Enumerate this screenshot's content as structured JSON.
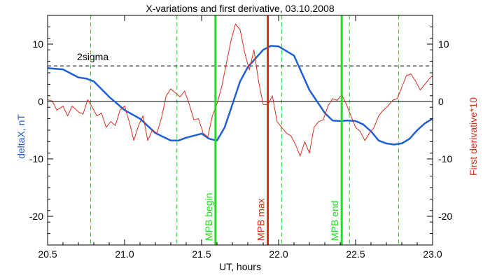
{
  "chart_data": {
    "type": "line",
    "title": "X-variations and first derivative, 03.10.2008",
    "xlabel": "UT, hours",
    "ylabel_left": "deltaX, nT",
    "ylabel_right": "First derivative*10",
    "xlim": [
      20.5,
      23.0
    ],
    "ylim": [
      -25,
      15
    ],
    "x_ticks": [
      20.5,
      21.0,
      21.5,
      22.0,
      22.5,
      23.0
    ],
    "x_tick_labels": [
      "20.5",
      "21.0",
      "21.5",
      "22.0",
      "22.5",
      "23.0"
    ],
    "y_ticks": [
      10,
      0,
      -10,
      -20
    ],
    "y_tick_labels": [
      "10",
      "0",
      "-10",
      "-20"
    ],
    "grid": false,
    "colors": {
      "deltaX": "#1f5fd6",
      "derivative": "#d62f1f",
      "green_marker": "#22dd22",
      "red_marker": "#dd2a10",
      "dashed_line": "#000000"
    },
    "series": [
      {
        "key": "deltaX",
        "axis": "left",
        "x": [
          20.5,
          20.6,
          20.7,
          20.75,
          20.8,
          20.9,
          21.0,
          21.1,
          21.2,
          21.3,
          21.35,
          21.4,
          21.5,
          21.55,
          21.6,
          21.65,
          21.7,
          21.75,
          21.8,
          21.85,
          21.9,
          21.95,
          22.0,
          22.1,
          22.2,
          22.3,
          22.35,
          22.4,
          22.45,
          22.5,
          22.55,
          22.6,
          22.65,
          22.7,
          22.75,
          22.8,
          22.85,
          22.9,
          22.95,
          23.0
        ],
        "y": [
          5.8,
          5.6,
          4.2,
          4.0,
          3.5,
          0.8,
          -1.5,
          -3.0,
          -5.5,
          -6.8,
          -6.8,
          -6.3,
          -5.6,
          -6.5,
          -6.8,
          -4.5,
          -0.5,
          3.5,
          6.0,
          7.5,
          9.0,
          9.7,
          9.6,
          8.0,
          2.0,
          -2.0,
          -3.3,
          -3.4,
          -3.3,
          -3.4,
          -4.0,
          -5.2,
          -6.8,
          -7.3,
          -7.5,
          -7.3,
          -6.5,
          -5.0,
          -3.8,
          -3.0
        ]
      },
      {
        "key": "derivative",
        "axis": "right",
        "x": [
          20.5,
          20.53,
          20.56,
          20.6,
          20.63,
          20.66,
          20.7,
          20.73,
          20.76,
          20.79,
          20.82,
          20.85,
          20.88,
          20.91,
          20.94,
          20.97,
          21.0,
          21.03,
          21.06,
          21.09,
          21.12,
          21.15,
          21.18,
          21.21,
          21.24,
          21.27,
          21.3,
          21.33,
          21.36,
          21.39,
          21.42,
          21.45,
          21.48,
          21.51,
          21.54,
          21.57,
          21.6,
          21.63,
          21.66,
          21.69,
          21.72,
          21.75,
          21.78,
          21.81,
          21.84,
          21.87,
          21.9,
          21.93,
          21.96,
          21.99,
          22.02,
          22.05,
          22.08,
          22.11,
          22.14,
          22.17,
          22.2,
          22.23,
          22.26,
          22.29,
          22.32,
          22.35,
          22.38,
          22.41,
          22.44,
          22.47,
          22.5,
          22.53,
          22.56,
          22.59,
          22.62,
          22.65,
          22.68,
          22.71,
          22.74,
          22.77,
          22.8,
          22.83,
          22.86,
          22.89,
          22.92,
          22.95,
          22.98,
          23.0
        ],
        "y": [
          0.3,
          0.1,
          -1.5,
          -0.8,
          -2.5,
          -0.8,
          -1.8,
          -2.2,
          0.3,
          -1.0,
          -2.5,
          -2.0,
          -4.5,
          -3.5,
          -4.2,
          -1.5,
          -0.8,
          -3.5,
          -6.8,
          -4.2,
          -2.5,
          -6.8,
          -5.0,
          -5.5,
          -2.8,
          1.0,
          2.2,
          1.5,
          0.8,
          1.8,
          -0.5,
          -3.2,
          -3.0,
          -5.5,
          -6.2,
          -2.5,
          -0.4,
          2.5,
          6.5,
          10.5,
          13.5,
          12.5,
          8.5,
          5.5,
          9.0,
          3.5,
          -0.5,
          -0.6,
          1.0,
          -3.5,
          -4.5,
          -5.5,
          -6.0,
          -7.5,
          -9.5,
          -7.0,
          -9.0,
          -4.5,
          -3.5,
          -3.2,
          -0.8,
          0.5,
          0.2,
          1.2,
          -0.5,
          -2.5,
          -4.5,
          -5.2,
          -6.8,
          -5.5,
          -4.5,
          -2.5,
          -1.5,
          -0.8,
          0.2,
          0.5,
          2.5,
          4.5,
          4.8,
          3.5,
          2.0,
          3.0,
          4.0,
          4.5
        ]
      }
    ],
    "reference_lines": {
      "zero_level": 0,
      "sigma_level": 6.2,
      "sigma_label": "2sigma"
    },
    "dashed_vertical_x": [
      20.78,
      21.34,
      22.02,
      22.46,
      22.78
    ],
    "markers": [
      {
        "label": "MPB begin",
        "x": 21.59,
        "kind": "green"
      },
      {
        "label": "MPB max",
        "x": 21.93,
        "kind": "red"
      },
      {
        "label": "MPB end",
        "x": 22.41,
        "kind": "green"
      }
    ]
  }
}
